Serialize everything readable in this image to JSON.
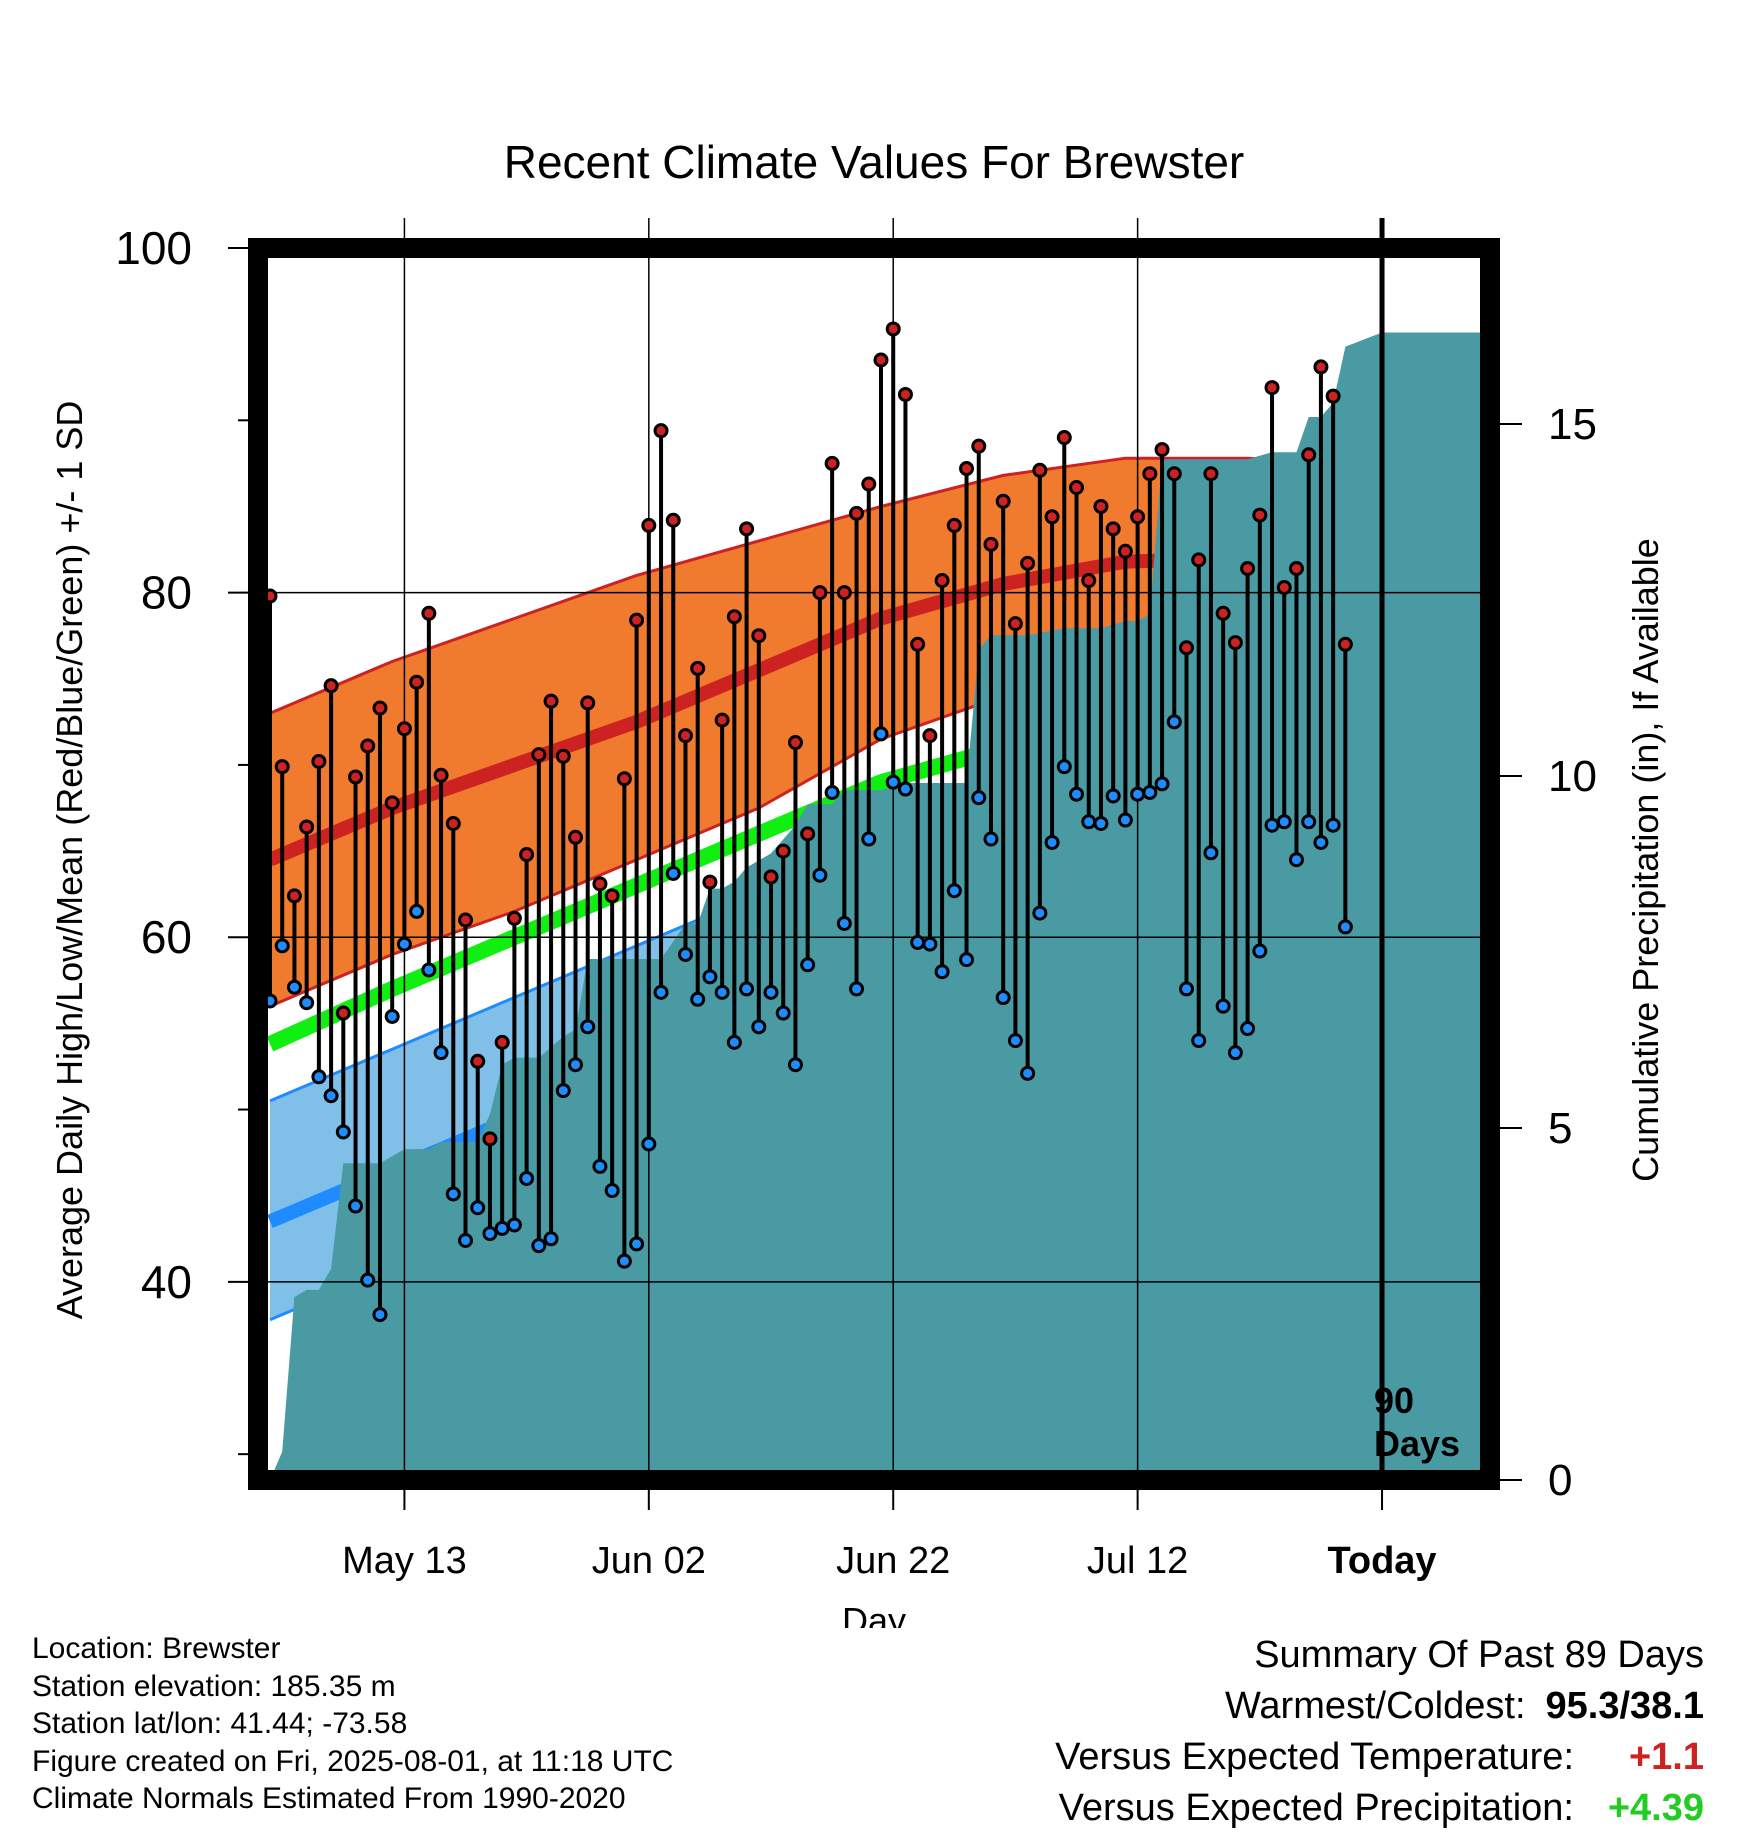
{
  "chart_data": {
    "type": "line",
    "title": "Recent Climate Values For Brewster",
    "xlabel": "Day",
    "ylabel": "Average Daily High/Low/Mean (Red/Blue/Green) +/- 1 SD",
    "y2label": "Cumulative Precipitation (in), If Available",
    "ylim": [
      28.5,
      100
    ],
    "y2lim": [
      0,
      17.5
    ],
    "yticks": [
      40,
      60,
      80,
      100
    ],
    "y2ticks": [
      0,
      5,
      10,
      15
    ],
    "xlim": [
      0,
      100
    ],
    "xticks": [
      {
        "day": 11,
        "label": "May 13"
      },
      {
        "day": 31,
        "label": "Jun 02"
      },
      {
        "day": 51,
        "label": "Jun 22"
      },
      {
        "day": 71,
        "label": "Jul 12"
      },
      {
        "day": 91,
        "label": "Today"
      }
    ],
    "today_day": 91,
    "today_label_line1": "90",
    "today_label_line2": "Days",
    "colors": {
      "normal_high": "#cc2222",
      "high_band": "#f07a2e",
      "normal_mean": "#11ee11",
      "normal_low": "#1e8cff",
      "low_band": "#80c0e8",
      "precip": "#4a9aa4",
      "high_marker": "#cc2222",
      "low_marker": "#1e8cff"
    },
    "normals": {
      "days": [
        0,
        10,
        20,
        30,
        40,
        50,
        60,
        70,
        80,
        90,
        100
      ],
      "high": [
        64.5,
        67.5,
        70.0,
        72.5,
        75.5,
        78.5,
        80.5,
        81.8,
        82.0,
        81.5,
        80.5
      ],
      "high_sd_upper": [
        73.0,
        76.0,
        78.5,
        81.0,
        83.0,
        85.0,
        86.8,
        87.8,
        87.8,
        87.5,
        86.5
      ],
      "high_sd_lower": [
        56.0,
        59.0,
        61.5,
        64.5,
        67.5,
        71.5,
        74.0,
        75.5,
        75.8,
        76.0,
        75.3
      ],
      "mean": [
        53.8,
        57.0,
        60.0,
        63.0,
        66.0,
        69.0,
        71.0,
        72.3,
        72.6,
        72.5,
        71.8
      ],
      "low": [
        43.5,
        46.5,
        49.5,
        52.5,
        56.0,
        59.2,
        61.5,
        62.8,
        63.3,
        63.3,
        62.6
      ],
      "low_sd_upper": [
        50.5,
        53.5,
        56.5,
        59.5,
        62.5,
        65.5,
        67.3,
        68.3,
        68.7,
        68.8,
        68.0
      ],
      "low_sd_lower": [
        37.8,
        40.8,
        43.8,
        46.8,
        50.0,
        53.5,
        55.8,
        57.5,
        58.2,
        58.2,
        57.4
      ]
    },
    "daily": {
      "start_day": 0,
      "high": [
        79.8,
        69.9,
        62.4,
        66.4,
        70.2,
        74.6,
        55.6,
        69.3,
        71.1,
        73.3,
        67.8,
        72.1,
        74.8,
        78.8,
        69.4,
        66.6,
        61.0,
        52.8,
        48.3,
        53.9,
        61.1,
        64.8,
        70.6,
        73.7,
        70.5,
        65.8,
        73.6,
        63.1,
        62.4,
        69.2,
        78.4,
        83.9,
        89.4,
        84.2,
        71.7,
        75.6,
        63.2,
        72.6,
        78.6,
        83.7,
        77.5,
        63.5,
        65.0,
        71.3,
        66.0,
        80.0,
        87.5,
        80.0,
        84.6,
        86.3,
        93.5,
        95.3,
        91.5,
        77.0,
        71.7,
        80.7,
        83.9,
        87.2,
        88.5,
        82.8,
        85.3,
        78.2,
        81.7,
        87.1,
        84.4,
        89.0,
        86.1,
        80.7,
        85.0,
        83.7,
        82.4,
        84.4,
        86.9,
        88.3,
        86.9,
        76.8,
        81.9,
        86.9,
        78.8,
        77.1,
        81.4,
        84.5,
        91.9,
        80.3,
        81.4,
        88.0,
        93.1,
        91.4,
        77.0
      ],
      "low": [
        56.3,
        59.5,
        57.1,
        56.2,
        51.9,
        50.8,
        48.7,
        44.4,
        40.1,
        38.1,
        55.4,
        59.6,
        61.5,
        58.1,
        53.3,
        45.1,
        42.4,
        44.3,
        42.8,
        43.1,
        43.3,
        46.0,
        42.1,
        42.5,
        51.1,
        52.6,
        54.8,
        46.7,
        45.3,
        41.2,
        42.2,
        48.0,
        56.8,
        63.7,
        59.0,
        56.4,
        57.7,
        56.8,
        53.9,
        57.0,
        54.8,
        56.8,
        55.6,
        52.6,
        58.4,
        63.6,
        68.4,
        60.8,
        57.0,
        65.7,
        71.8,
        69.0,
        68.6,
        59.7,
        59.6,
        58.0,
        62.7,
        58.7,
        68.1,
        65.7,
        56.5,
        54.0,
        52.1,
        61.4,
        65.5,
        69.9,
        68.3,
        66.7,
        66.6,
        68.2,
        66.8,
        68.3,
        68.4,
        68.9,
        72.5,
        57.0,
        54.0,
        64.9,
        56.0,
        53.3,
        54.7,
        59.2,
        66.5,
        66.7,
        64.5,
        66.7,
        65.5,
        66.5,
        60.6
      ]
    },
    "precip": {
      "days": [
        0,
        1,
        2,
        3,
        4,
        5,
        6,
        7,
        9,
        10,
        11,
        12,
        13,
        14,
        15,
        17,
        18,
        19,
        20,
        22,
        24,
        25,
        26,
        27,
        28,
        29,
        32,
        34,
        35,
        36,
        37,
        38,
        39,
        41,
        43,
        44,
        45,
        46,
        47,
        49,
        50,
        52,
        55,
        57,
        58,
        59,
        62,
        65,
        68,
        70,
        71,
        72,
        73,
        76,
        80,
        82,
        84,
        85,
        86,
        87,
        88,
        91,
        100
      ],
      "values": [
        0,
        0.4,
        2.6,
        2.7,
        2.7,
        3.0,
        4.5,
        4.5,
        4.5,
        4.6,
        4.7,
        4.7,
        4.7,
        4.8,
        4.8,
        4.8,
        5.2,
        5.9,
        6.0,
        6.0,
        6.3,
        6.4,
        7.4,
        7.4,
        7.4,
        7.4,
        7.4,
        7.9,
        7.9,
        8.4,
        8.4,
        8.5,
        8.7,
        8.9,
        9.3,
        9.6,
        9.6,
        9.6,
        9.8,
        9.8,
        9.8,
        9.9,
        9.9,
        9.9,
        11.8,
        12.0,
        12.0,
        12.1,
        12.1,
        12.2,
        12.2,
        12.3,
        14.5,
        14.5,
        14.5,
        14.6,
        14.6,
        15.1,
        15.1,
        15.3,
        16.1,
        16.3,
        16.3
      ]
    }
  },
  "location_info": {
    "location": "Location: Brewster",
    "elevation": "Station elevation: 185.35 m",
    "latlon": "Station lat/lon: 41.44; -73.58",
    "created": "Figure created on Fri, 2025-08-01, at 11:18 UTC",
    "normals": "Climate Normals Estimated From 1990-2020"
  },
  "summary": {
    "title": "Summary Of Past 89 Days",
    "warmest_coldest_label": "Warmest/Coldest:",
    "warmest_coldest_value": "95.3/38.1",
    "temp_label": "Versus Expected Temperature:",
    "temp_value": "+1.1",
    "temp_color": "#cc2222",
    "precip_label": "Versus Expected Precipitation:",
    "precip_value": "+4.39",
    "precip_color": "#22cc22"
  }
}
